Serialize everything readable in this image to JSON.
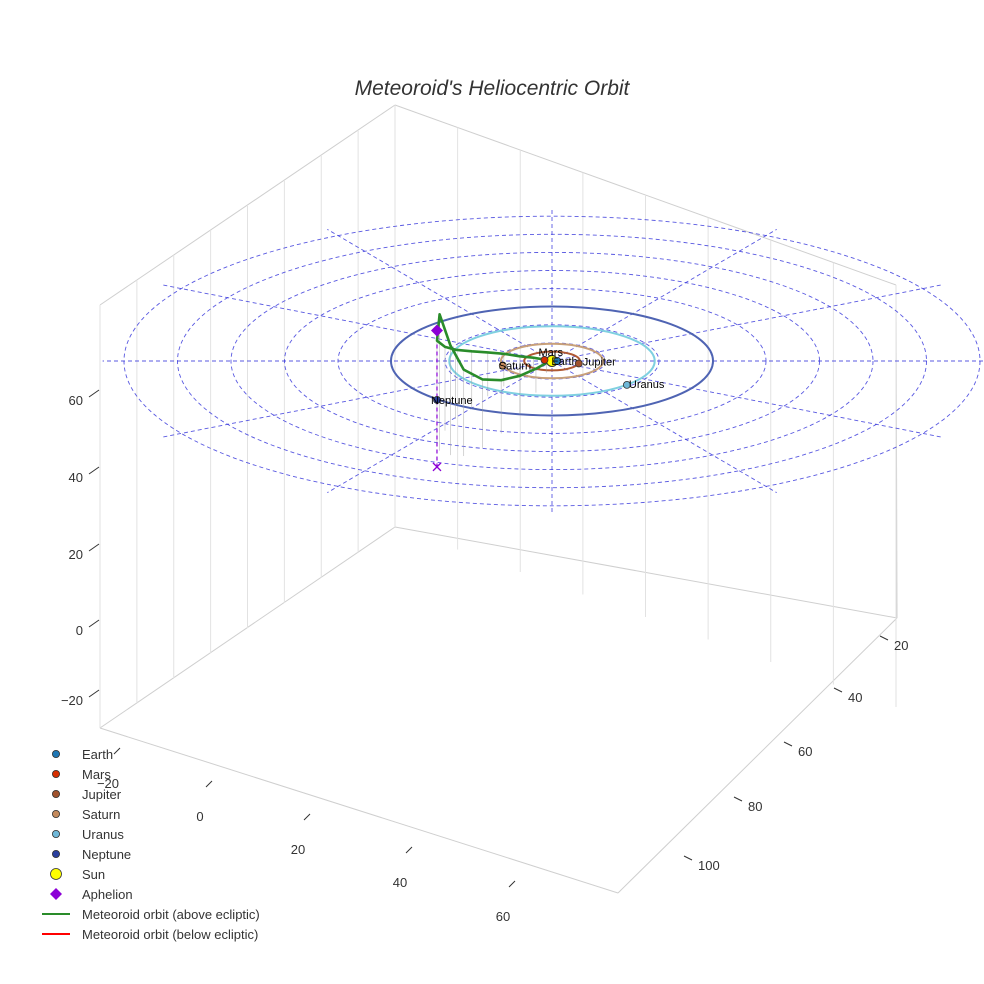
{
  "chart_data": {
    "type": "scatter",
    "projection": "3d",
    "title": "Meteoroid's Heliocentric Orbit",
    "grid": true,
    "legend_position": "bottom-left",
    "axes": {
      "x": {
        "ticks": [
          "−20",
          "0",
          "20",
          "40",
          "60"
        ]
      },
      "y": {
        "ticks": [
          "20",
          "40",
          "60",
          "80",
          "100"
        ]
      },
      "z": {
        "ticks": [
          "−20",
          "0",
          "20",
          "40",
          "60"
        ]
      }
    },
    "ecliptic_grid": {
      "circle_radii": [
        10,
        20,
        30,
        40,
        50,
        60,
        70,
        80
      ],
      "radial_lines": 12,
      "color": "#3b3bdc"
    },
    "planet_orbits": [
      {
        "name": "Mars",
        "radius": 1.52,
        "color": "#e03c31"
      },
      {
        "name": "Jupiter",
        "radius": 5.2,
        "color": "#b05a35"
      },
      {
        "name": "Saturn",
        "radius": 9.54,
        "color": "#c8a07a"
      },
      {
        "name": "Uranus",
        "radius": 19.2,
        "color": "#7fd0e0"
      },
      {
        "name": "Neptune",
        "radius": 30.1,
        "color": "#4f64b3"
      }
    ],
    "planets": [
      {
        "name": "Earth",
        "x": 1.0,
        "y": 0.0,
        "z": 0,
        "color": "#1f77b4"
      },
      {
        "name": "Mars",
        "x": -1.4,
        "y": -0.6,
        "z": 0,
        "color": "#d62f00"
      },
      {
        "name": "Jupiter",
        "x": 5.0,
        "y": 1.4,
        "z": 0,
        "color": "#a0522d"
      },
      {
        "name": "Saturn",
        "x": -9.2,
        "y": 2.5,
        "z": 0,
        "color": "#c48a5c"
      },
      {
        "name": "Uranus",
        "x": 14.0,
        "y": 13.2,
        "z": 0,
        "color": "#6fb8d8"
      },
      {
        "name": "Neptune",
        "x": -21.5,
        "y": 21.5,
        "z": 0,
        "color": "#2a3f9e"
      }
    ],
    "sun": {
      "name": "Sun",
      "x": 0,
      "y": 0,
      "z": 0,
      "color": "#ffff00"
    },
    "aphelion": {
      "name": "Aphelion",
      "x": -21.5,
      "y": 58.5,
      "z": 20.5,
      "color": "#8b00d6"
    },
    "meteoroid_orbit": {
      "above_ecliptic": {
        "name": "Meteoroid orbit (above ecliptic)",
        "color": "#2a8c2a",
        "x": [
          0,
          -0.5,
          -1.5,
          -3.5,
          -6,
          -9,
          -12,
          -15,
          -18,
          -20,
          -21.5,
          -21,
          -19,
          -16.5,
          -13,
          -9.5,
          -6,
          -3,
          -1,
          0
        ],
        "y": [
          0,
          1.0,
          2.5,
          5.5,
          9.5,
          14,
          19.5,
          25.5,
          32,
          38.5,
          45,
          49.5,
          52,
          52.5,
          48,
          40,
          29.5,
          17.5,
          6.5,
          0
        ],
        "z": [
          0,
          0.3,
          0.9,
          2,
          3.3,
          4.9,
          6.6,
          8.4,
          10.4,
          12.6,
          15.3,
          20.5,
          16.5,
          13,
          10.3,
          8,
          5.8,
          3.6,
          1.5,
          0
        ]
      },
      "below_ecliptic": {
        "name": "Meteoroid orbit (below ecliptic)",
        "color": "#ff0000"
      }
    },
    "legend": [
      {
        "label": "Earth",
        "marker": "circle",
        "color": "#1f77b4"
      },
      {
        "label": "Mars",
        "marker": "circle",
        "color": "#d62f00"
      },
      {
        "label": "Jupiter",
        "marker": "circle",
        "color": "#a0522d"
      },
      {
        "label": "Saturn",
        "marker": "circle",
        "color": "#c48a5c"
      },
      {
        "label": "Uranus",
        "marker": "circle",
        "color": "#6fb8d8"
      },
      {
        "label": "Neptune",
        "marker": "circle",
        "color": "#2a3f9e"
      },
      {
        "label": "Sun",
        "marker": "circle-large",
        "color": "#ffff00"
      },
      {
        "label": "Aphelion",
        "marker": "diamond",
        "color": "#8b00d6"
      },
      {
        "label": "Meteoroid orbit (above ecliptic)",
        "marker": "line",
        "color": "#2a8c2a"
      },
      {
        "label": "Meteoroid orbit (below ecliptic)",
        "marker": "line",
        "color": "#ff0000"
      }
    ]
  }
}
